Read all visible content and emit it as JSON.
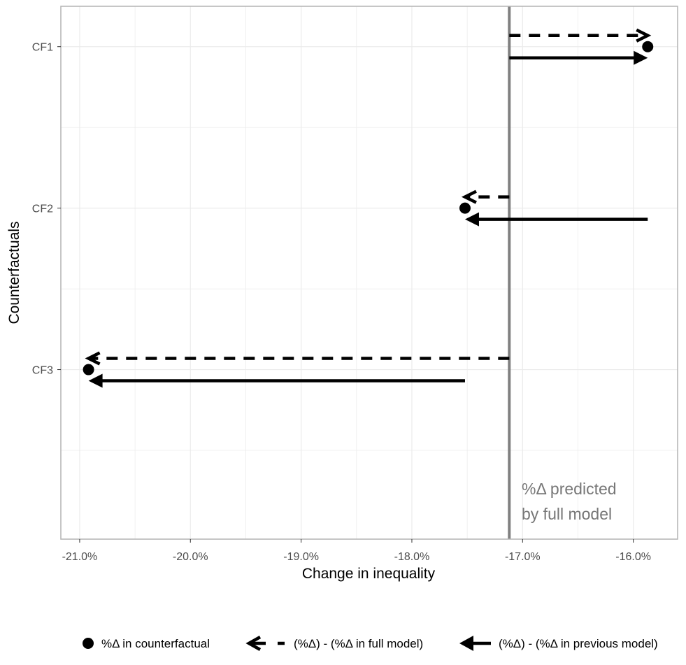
{
  "chart_data": {
    "type": "arrow-dot",
    "xlabel": "Change in inequality",
    "ylabel": "Counterfactuals",
    "x_ticks": [
      -21.0,
      -20.0,
      -19.0,
      -18.0,
      -17.0,
      -16.0
    ],
    "x_tick_labels": [
      "-21.0%",
      "-20.0%",
      "-19.0%",
      "-18.0%",
      "-17.0%",
      "-16.0%"
    ],
    "xlim": [
      -21.17,
      -15.6
    ],
    "categories": [
      "CF1",
      "CF2",
      "CF3"
    ],
    "reference_line": {
      "x": -17.12,
      "label_lines": [
        "%Δ predicted",
        "by full model"
      ],
      "color": "#808080"
    },
    "counterfactual_points": [
      {
        "category": "CF1",
        "x": -15.87
      },
      {
        "category": "CF2",
        "x": -17.52
      },
      {
        "category": "CF3",
        "x": -20.92
      }
    ],
    "arrows_full_model": [
      {
        "category": "CF1",
        "from": -17.12,
        "to": -15.87
      },
      {
        "category": "CF2",
        "from": -17.12,
        "to": -17.52
      },
      {
        "category": "CF3",
        "from": -17.12,
        "to": -20.92
      }
    ],
    "arrows_previous_model": [
      {
        "category": "CF1",
        "from": -17.12,
        "to": -15.87
      },
      {
        "category": "CF2",
        "from": -15.87,
        "to": -17.52
      },
      {
        "category": "CF3",
        "from": -17.52,
        "to": -20.92
      }
    ],
    "legend": {
      "position": "bottom",
      "items": [
        {
          "key": "point",
          "label": "%Δ in counterfactual"
        },
        {
          "key": "dashed-arrow",
          "label": "(%Δ) - (%Δ in full model)"
        },
        {
          "key": "solid-arrow",
          "label": "(%Δ) - (%Δ in previous model)"
        }
      ]
    },
    "grid": true,
    "colors": {
      "mark": "#000000",
      "reference": "#808080",
      "grid": "#ebebeb",
      "panel_border": "#b3b3b3"
    }
  }
}
